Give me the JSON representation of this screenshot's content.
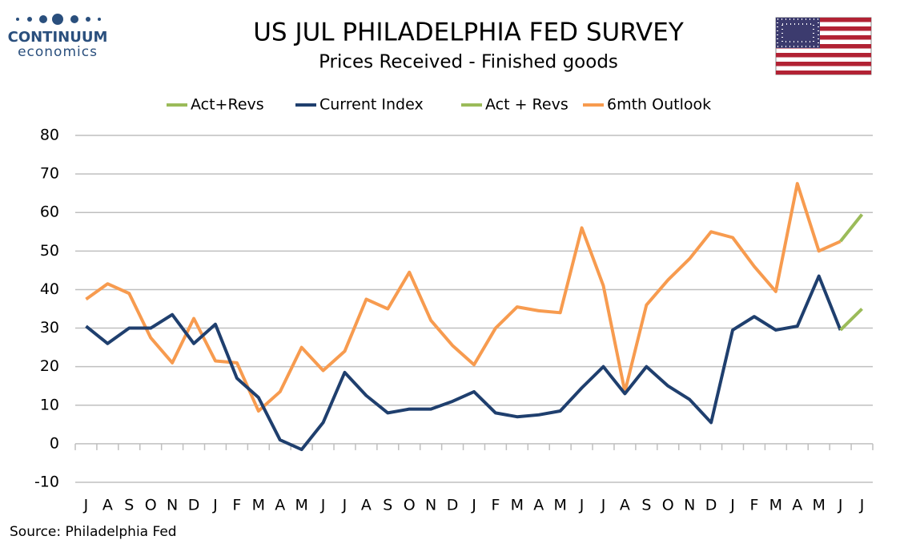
{
  "logo": {
    "name": "CONTINUUM",
    "tagline": "economics"
  },
  "chart_data": {
    "type": "line",
    "title": "US JUL PHILADELPHIA FED SURVEY",
    "subtitle": "Prices Received - Finished goods",
    "source": "Source: Philadelphia Fed",
    "categories": [
      "J",
      "A",
      "S",
      "O",
      "N",
      "D",
      "J",
      "F",
      "M",
      "A",
      "M",
      "J",
      "J",
      "A",
      "S",
      "O",
      "N",
      "D",
      "J",
      "F",
      "M",
      "A",
      "M",
      "J",
      "J",
      "A",
      "S",
      "O",
      "N",
      "D",
      "J",
      "F",
      "M",
      "A",
      "M",
      "J",
      "J"
    ],
    "series": [
      {
        "name": "Act+Revs",
        "color": "#9bbb59",
        "values": [
          null,
          null,
          null,
          null,
          null,
          null,
          null,
          null,
          null,
          null,
          null,
          null,
          null,
          null,
          null,
          null,
          null,
          null,
          null,
          null,
          null,
          null,
          null,
          null,
          null,
          null,
          null,
          null,
          null,
          null,
          null,
          null,
          null,
          null,
          null,
          29.5,
          35
        ]
      },
      {
        "name": "Current Index",
        "color": "#1f3f6e",
        "values": [
          30.5,
          26,
          30,
          30,
          33.5,
          26,
          31,
          17,
          12,
          1,
          -1.5,
          5.5,
          18.5,
          12.5,
          8,
          9,
          9,
          11,
          13.5,
          8,
          7,
          7.5,
          8.5,
          14.5,
          20,
          13,
          20,
          15,
          11.5,
          5.5,
          29.5,
          33,
          29.5,
          30.5,
          43.5,
          29.5,
          null
        ]
      },
      {
        "name": "Act + Revs",
        "color": "#9bbb59",
        "values": [
          null,
          null,
          null,
          null,
          null,
          null,
          null,
          null,
          null,
          null,
          null,
          null,
          null,
          null,
          null,
          null,
          null,
          null,
          null,
          null,
          null,
          null,
          null,
          null,
          null,
          null,
          null,
          null,
          null,
          null,
          null,
          null,
          null,
          null,
          null,
          52.5,
          59.5
        ]
      },
      {
        "name": "6mth Outlook",
        "color": "#f79b4f",
        "values": [
          37.5,
          41.5,
          39,
          27.5,
          21,
          32.5,
          21.5,
          21,
          8.5,
          13.5,
          25,
          19,
          24,
          37.5,
          35,
          44.5,
          32,
          25.5,
          20.5,
          30,
          35.5,
          34.5,
          34,
          56,
          41,
          13.5,
          36,
          42.5,
          48,
          55,
          53.5,
          46,
          39.5,
          67.5,
          50,
          52.5,
          null
        ]
      }
    ],
    "ylim": [
      -10,
      80
    ],
    "yticks": [
      -10,
      0,
      10,
      20,
      30,
      40,
      50,
      60,
      70,
      80
    ],
    "grid": true
  }
}
